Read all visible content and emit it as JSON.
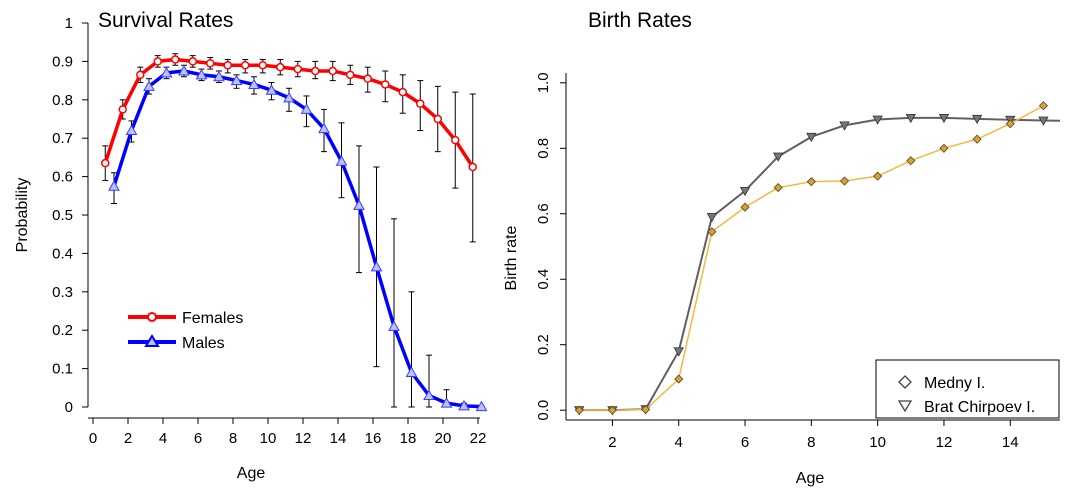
{
  "chart_data": [
    {
      "type": "line",
      "title": "Survival Rates",
      "xlabel": "Age",
      "ylabel": "Probability",
      "xlim": [
        0,
        22
      ],
      "ylim": [
        0,
        1
      ],
      "x_ticks": [
        "0",
        "2",
        "4",
        "6",
        "8",
        "10",
        "12",
        "14",
        "16",
        "18",
        "20",
        "22"
      ],
      "y_ticks": [
        "0",
        "0.1",
        "0.2",
        "0.3",
        "0.4",
        "0.5",
        "0.6",
        "0.7",
        "0.8",
        "0.9",
        "1"
      ],
      "legend_position": "bottom-left",
      "series": [
        {
          "name": "Females",
          "color": "#ff0000",
          "marker": "circle",
          "x": [
            0.7,
            1.7,
            2.7,
            3.7,
            4.7,
            5.7,
            6.7,
            7.7,
            8.7,
            9.7,
            10.7,
            11.7,
            12.7,
            13.7,
            14.7,
            15.7,
            16.7,
            17.7,
            18.7,
            19.7,
            20.7,
            21.7
          ],
          "y": [
            0.635,
            0.775,
            0.865,
            0.9,
            0.905,
            0.9,
            0.895,
            0.89,
            0.89,
            0.89,
            0.885,
            0.88,
            0.875,
            0.875,
            0.865,
            0.855,
            0.84,
            0.82,
            0.79,
            0.75,
            0.695,
            0.625
          ],
          "err_low": [
            0.59,
            0.75,
            0.845,
            0.885,
            0.89,
            0.885,
            0.88,
            0.87,
            0.87,
            0.87,
            0.865,
            0.86,
            0.855,
            0.85,
            0.84,
            0.82,
            0.795,
            0.765,
            0.72,
            0.665,
            0.57,
            0.43
          ],
          "err_high": [
            0.68,
            0.8,
            0.885,
            0.915,
            0.92,
            0.915,
            0.91,
            0.905,
            0.905,
            0.905,
            0.905,
            0.9,
            0.9,
            0.9,
            0.89,
            0.885,
            0.875,
            0.865,
            0.85,
            0.835,
            0.82,
            0.815
          ]
        },
        {
          "name": "Males",
          "color": "#0000ff",
          "marker": "triangle",
          "x": [
            1.2,
            2.2,
            3.2,
            4.2,
            5.2,
            6.2,
            7.2,
            8.2,
            9.2,
            10.2,
            11.2,
            12.2,
            13.2,
            14.2,
            15.2,
            16.2,
            17.2,
            18.2,
            19.2,
            20.2,
            21.2,
            22.2
          ],
          "y": [
            0.575,
            0.72,
            0.835,
            0.87,
            0.875,
            0.865,
            0.86,
            0.85,
            0.84,
            0.825,
            0.805,
            0.775,
            0.725,
            0.64,
            0.525,
            0.365,
            0.21,
            0.09,
            0.03,
            0.01,
            0.003,
            0.001
          ],
          "err_low": [
            0.53,
            0.69,
            0.815,
            0.855,
            0.86,
            0.85,
            0.845,
            0.83,
            0.815,
            0.8,
            0.77,
            0.73,
            0.665,
            0.545,
            0.35,
            0.105,
            0.0,
            0.0,
            0.0,
            0.0,
            0.0,
            0.0
          ],
          "err_high": [
            0.61,
            0.745,
            0.855,
            0.885,
            0.89,
            0.88,
            0.875,
            0.865,
            0.86,
            0.845,
            0.83,
            0.81,
            0.775,
            0.74,
            0.68,
            0.625,
            0.49,
            0.3,
            0.135,
            0.045,
            0.01,
            0.003
          ]
        }
      ]
    },
    {
      "type": "line",
      "title": "Birth Rates",
      "xlabel": "Age",
      "ylabel": "Birth rate",
      "xlim": [
        0.6,
        15.5
      ],
      "ylim": [
        -0.03,
        1.03
      ],
      "x_ticks": [
        "2",
        "4",
        "6",
        "8",
        "10",
        "12",
        "14"
      ],
      "y_ticks": [
        "0.0",
        "0.2",
        "0.4",
        "0.6",
        "0.8",
        "1.0"
      ],
      "legend_position": "bottom-right",
      "series": [
        {
          "name": "Medny I.",
          "color": "#f5b840",
          "marker": "diamond",
          "x": [
            1,
            2,
            3,
            4,
            5,
            6,
            7,
            8,
            9,
            10,
            11,
            12,
            13,
            14,
            15
          ],
          "y": [
            0.0,
            0.0,
            0.002,
            0.095,
            0.545,
            0.62,
            0.68,
            0.698,
            0.7,
            0.715,
            0.762,
            0.8,
            0.828,
            0.875,
            0.93
          ]
        },
        {
          "name": "Brat Chirpoev I.",
          "color": "#606060",
          "marker": "triangle-down",
          "x": [
            1,
            2,
            3,
            4,
            5,
            6,
            7,
            8,
            9,
            10,
            11,
            12,
            13,
            14,
            15,
            15.5
          ],
          "y": [
            0.0,
            0.0,
            0.003,
            0.18,
            0.59,
            0.67,
            0.775,
            0.835,
            0.87,
            0.888,
            0.893,
            0.893,
            0.89,
            0.887,
            0.885,
            0.884
          ]
        }
      ]
    }
  ]
}
